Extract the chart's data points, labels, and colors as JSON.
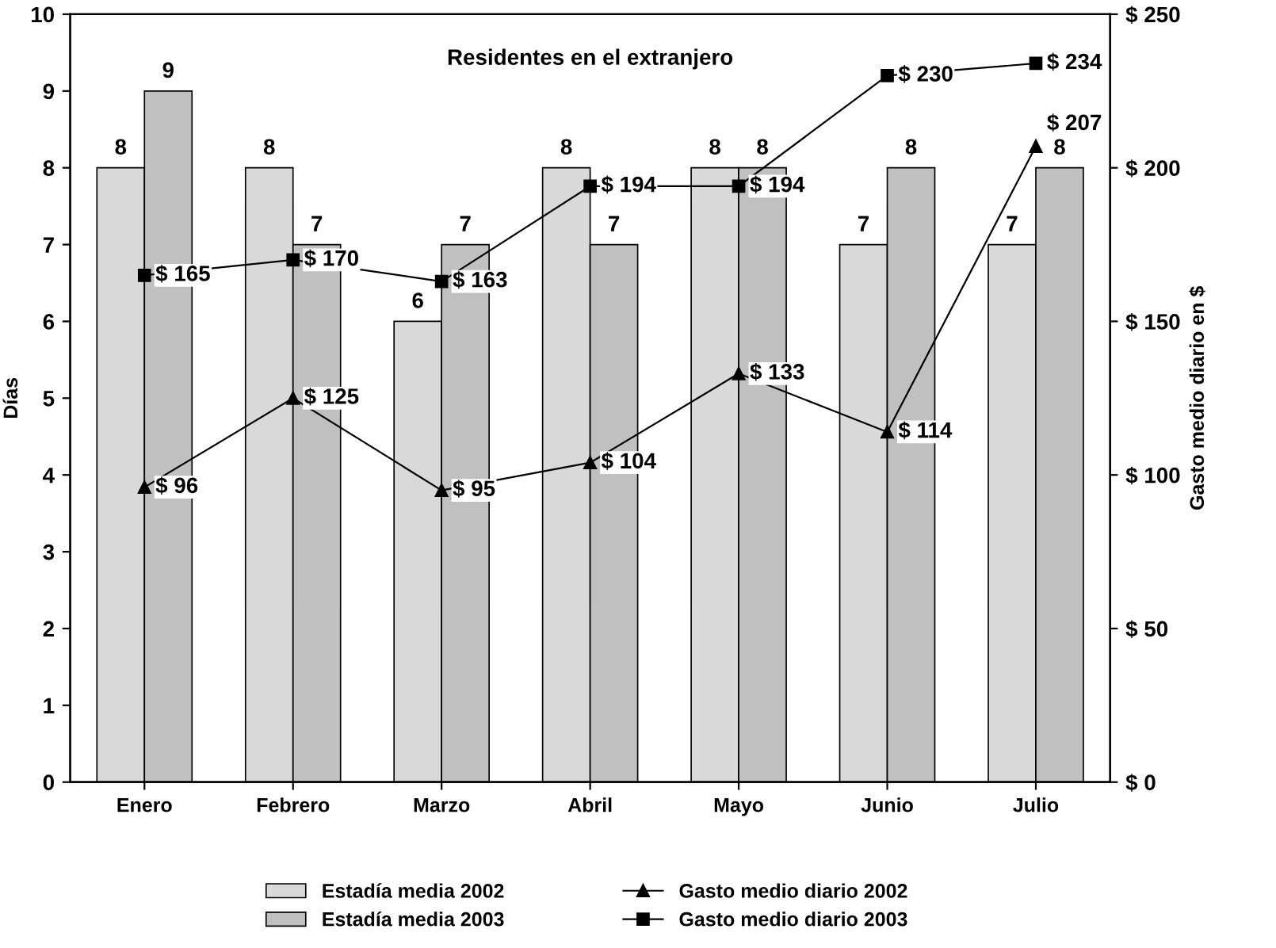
{
  "chart_data": {
    "type": "bar",
    "title": "Residentes en el extranjero",
    "categories": [
      "Enero",
      "Febrero",
      "Marzo",
      "Abril",
      "Mayo",
      "Junio",
      "Julio"
    ],
    "series": [
      {
        "name": "Estadía media 2002",
        "color": "#d9d9d9",
        "values": [
          8,
          8,
          6,
          8,
          8,
          7,
          7
        ],
        "value_labels": [
          "8",
          "8",
          "6",
          "8",
          "8",
          "7",
          "7"
        ]
      },
      {
        "name": "Estadía media 2003",
        "color": "#c0c0c0",
        "values": [
          9,
          7,
          7,
          7,
          8,
          8,
          8
        ],
        "value_labels": [
          "9",
          "7",
          "7",
          "7",
          "8",
          "8",
          "8"
        ]
      },
      {
        "name": "Gasto medio diario 2002",
        "type": "line",
        "axis": "y2",
        "marker": "triangle",
        "color": "#000000",
        "values": [
          96,
          125,
          95,
          104,
          133,
          114,
          207
        ],
        "value_labels": [
          "$ 96",
          "$ 125",
          "$ 95",
          "$ 104",
          "$ 133",
          "$ 114",
          "$ 207"
        ]
      },
      {
        "name": "Gasto medio diario 2003",
        "type": "line",
        "axis": "y2",
        "marker": "square",
        "color": "#000000",
        "values": [
          165,
          170,
          163,
          194,
          194,
          230,
          234
        ],
        "value_labels": [
          "$ 165",
          "$ 170",
          "$ 163",
          "$ 194",
          "$ 194",
          "$ 230",
          "$ 234"
        ]
      }
    ],
    "ylabel": "Días",
    "y2label": "Gasto medio diario en $",
    "ylim": [
      0,
      10
    ],
    "yticks": [
      0,
      1,
      2,
      3,
      4,
      5,
      6,
      7,
      8,
      9,
      10
    ],
    "y2lim": [
      0,
      250
    ],
    "y2ticks": [
      {
        "value": 0,
        "label": "$ 0"
      },
      {
        "value": 50,
        "label": "$ 50"
      },
      {
        "value": 100,
        "label": "$ 100"
      },
      {
        "value": 150,
        "label": "$ 150"
      },
      {
        "value": 200,
        "label": "$ 200"
      },
      {
        "value": 250,
        "label": "$ 250"
      }
    ],
    "grid": false,
    "legend": "bottom",
    "line_style": "solid"
  }
}
